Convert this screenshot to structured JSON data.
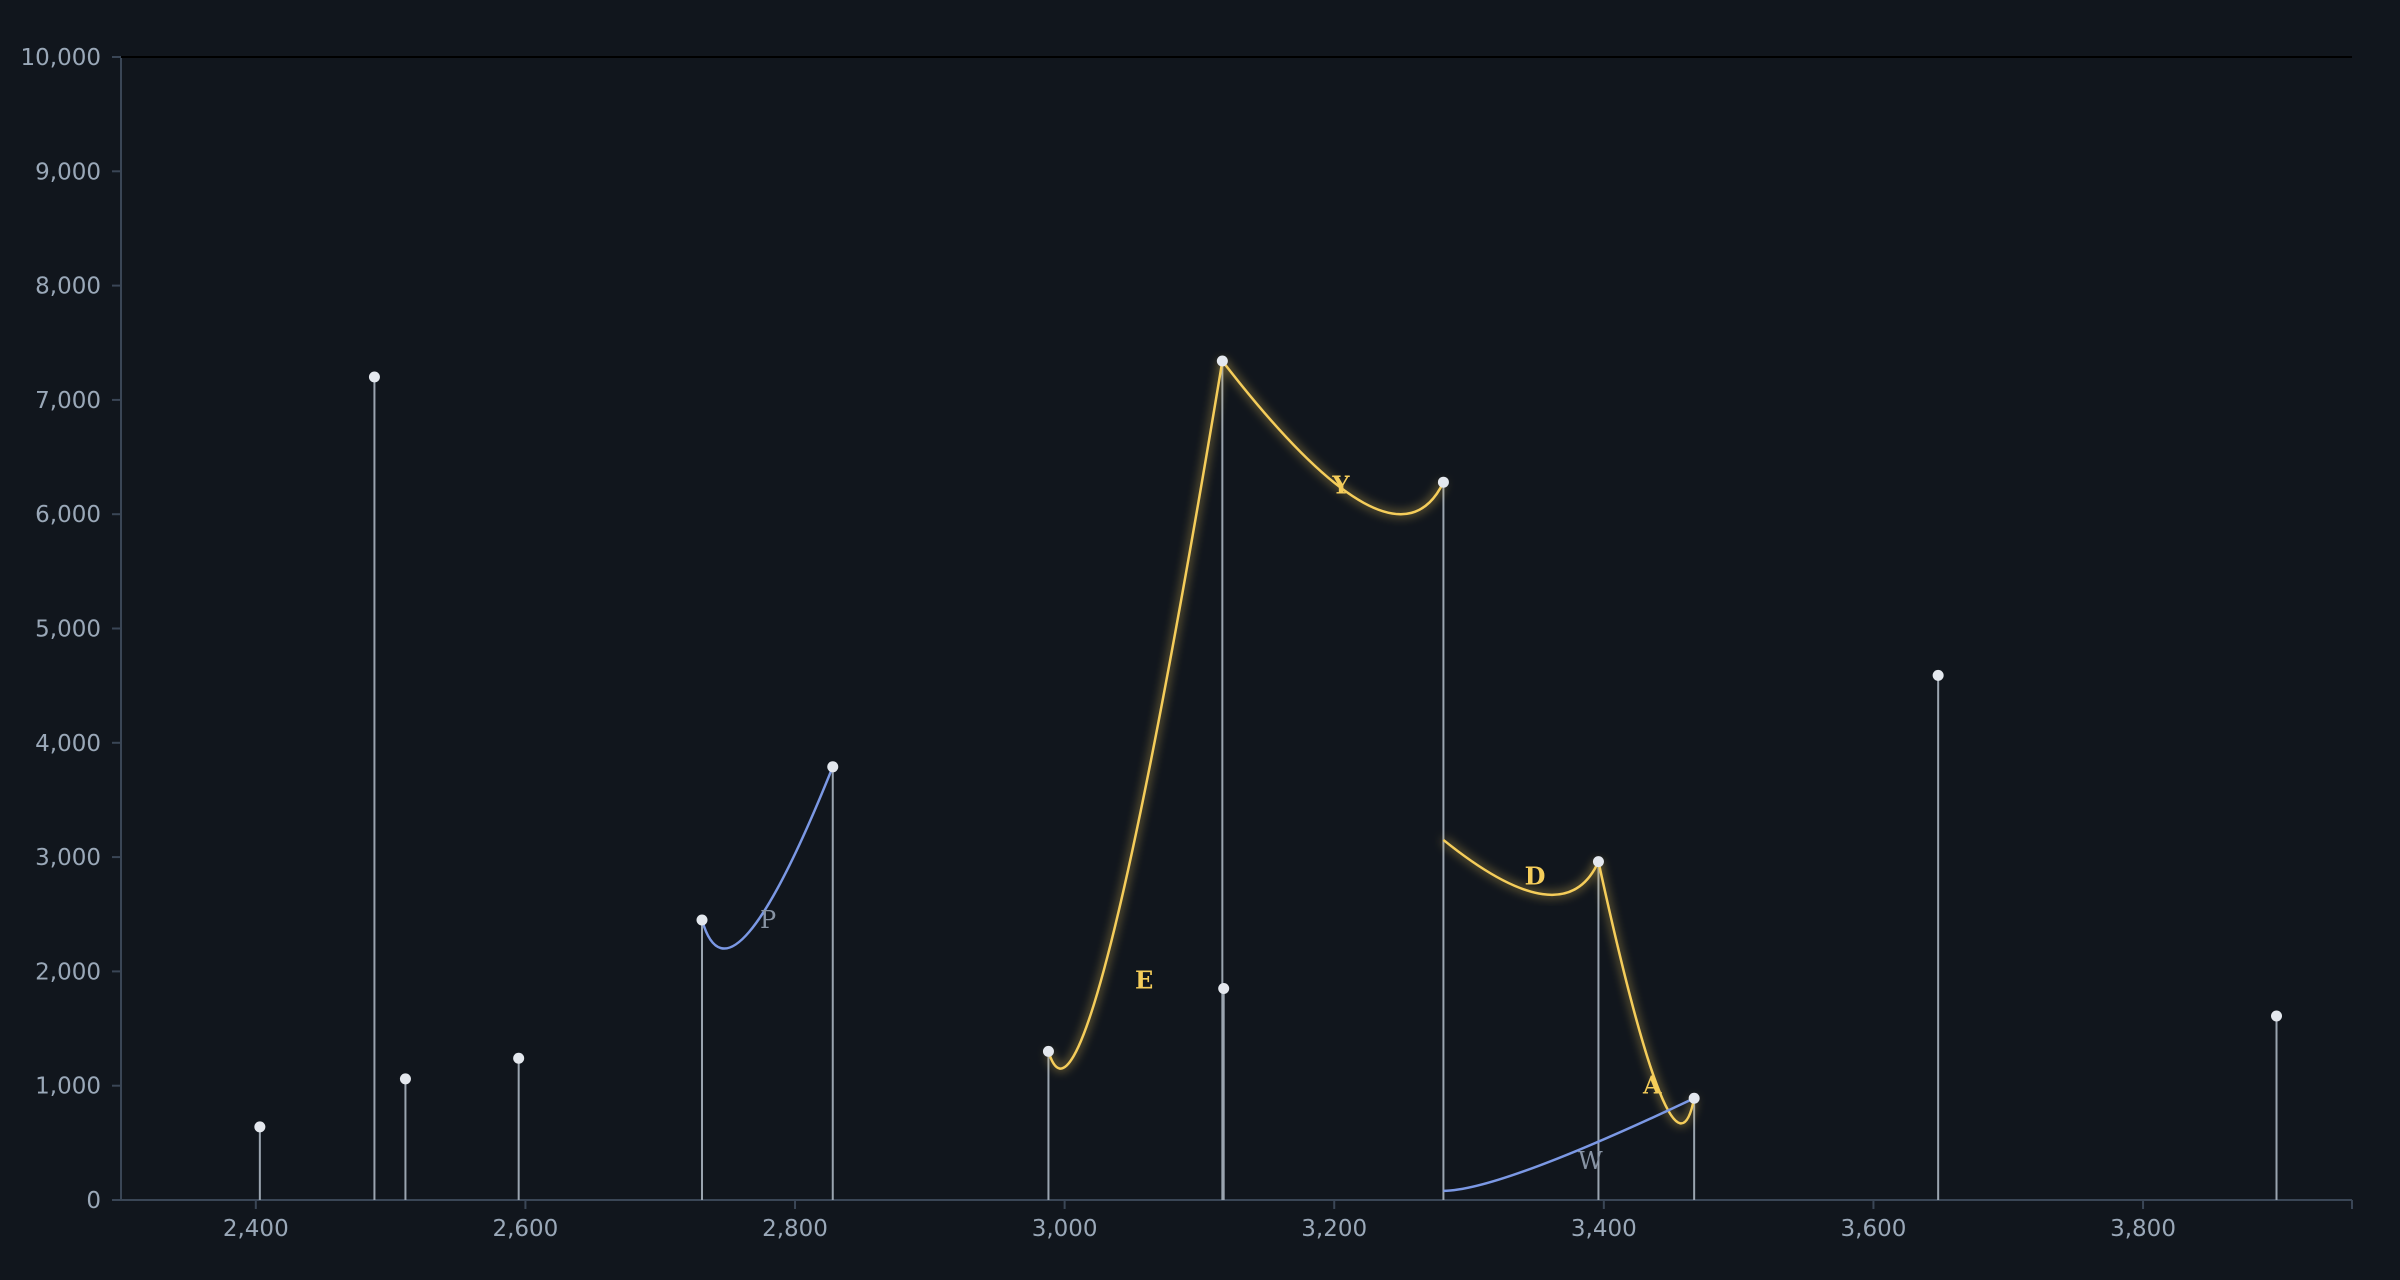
{
  "chart_data": {
    "type": "stem",
    "title": "",
    "xlabel": "",
    "ylabel": "",
    "xlim": [
      2300,
      3955
    ],
    "ylim": [
      0,
      10000
    ],
    "x_ticks": [
      2400,
      2600,
      2800,
      3000,
      3200,
      3400,
      3600,
      3800
    ],
    "y_ticks": [
      0,
      1000,
      2000,
      3000,
      4000,
      5000,
      6000,
      7000,
      8000,
      9000,
      10000
    ],
    "grid": false,
    "peaks": [
      {
        "x": 2403,
        "y": 640
      },
      {
        "x": 2488,
        "y": 7200
      },
      {
        "x": 2511,
        "y": 1060
      },
      {
        "x": 2595,
        "y": 1240
      },
      {
        "x": 2731,
        "y": 2450
      },
      {
        "x": 2828,
        "y": 3790
      },
      {
        "x": 2988,
        "y": 1300
      },
      {
        "x": 3117,
        "y": 7340
      },
      {
        "x": 3118,
        "y": 1850
      },
      {
        "x": 3281,
        "y": 6280
      },
      {
        "x": 3396,
        "y": 2960
      },
      {
        "x": 3467,
        "y": 890
      },
      {
        "x": 3648,
        "y": 4590
      },
      {
        "x": 3899,
        "y": 1610
      }
    ],
    "annotations": [
      {
        "label": "E",
        "style": "major",
        "color": "#f5cd5a",
        "x1": 2988,
        "y1": 1300,
        "x2": 3117,
        "y2": 7340,
        "dip": 1150,
        "label_x": 3059,
        "label_y": 1920
      },
      {
        "label": "Y",
        "style": "major",
        "color": "#f5cd5a",
        "x1": 3117,
        "y1": 7340,
        "x2": 3281,
        "y2": 6280,
        "dip": 6000,
        "label_x": 3205,
        "label_y": 6250
      },
      {
        "label": "D",
        "style": "major",
        "color": "#f5cd5a",
        "x1": 3281,
        "y1": 3150,
        "x2": 3396,
        "y2": 2960,
        "dip": 2670,
        "label_x": 3349,
        "label_y": 2830
      },
      {
        "label": "A",
        "style": "major",
        "color": "#f5cd5a",
        "x1": 3396,
        "y1": 2960,
        "x2": 3467,
        "y2": 890,
        "dip": 670,
        "label_x": 3436,
        "label_y": 1000
      },
      {
        "label": "P",
        "style": "minor",
        "color": "#7b98e4",
        "x1": 2731,
        "y1": 2450,
        "x2": 2828,
        "y2": 3790,
        "dip": 2200,
        "label_x": 2780,
        "label_y": 2450
      },
      {
        "label": "W",
        "style": "minor",
        "color": "#7b98e4",
        "x1": 3281,
        "y1": 80,
        "x2": 3467,
        "y2": 890,
        "dip": 80,
        "label_x": 3390,
        "label_y": 340
      }
    ]
  },
  "colors": {
    "background": "#11161d",
    "axis": "#3a4656",
    "stem": "#9aa4af",
    "marker": "#e4e8ee",
    "major_ion": "#f5cd5a",
    "minor_ion": "#7b98e4",
    "top_border": "#000000"
  }
}
